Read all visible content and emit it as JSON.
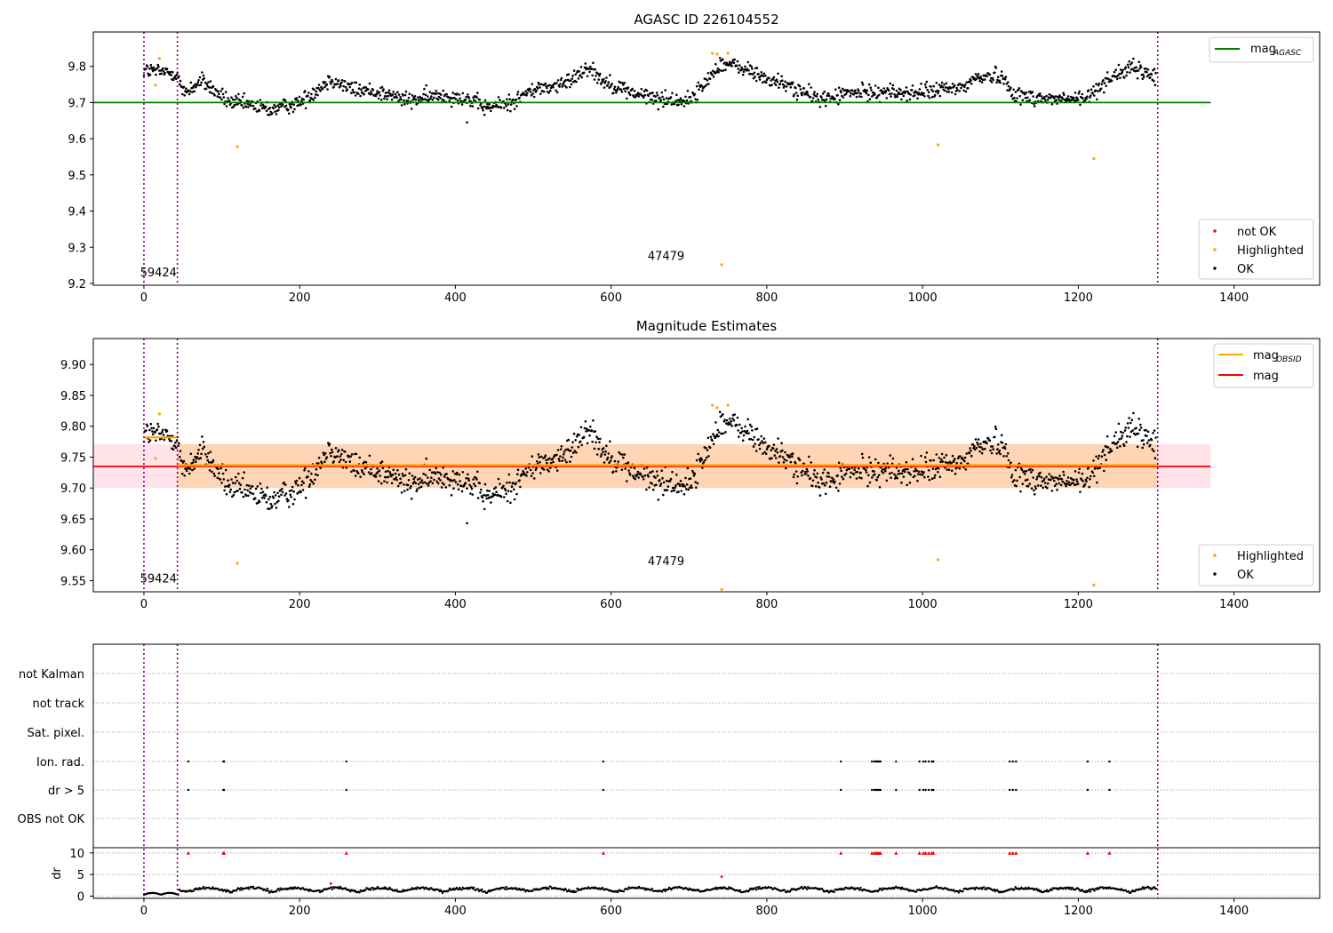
{
  "chart_data": [
    {
      "type": "scatter",
      "title": "AGASC ID 226104552",
      "xlim": [
        -65,
        1510
      ],
      "ylim": [
        9.195,
        9.895
      ],
      "xticks": [
        "0",
        "200",
        "400",
        "600",
        "800",
        "1000",
        "1200",
        "1400"
      ],
      "yticks": [
        "9.2",
        "9.3",
        "9.4",
        "9.5",
        "9.6",
        "9.7",
        "9.8"
      ],
      "vlines": [
        0,
        43,
        1302
      ],
      "mag_agasc": 9.7,
      "annotations": [
        {
          "text": "59424",
          "x": -5,
          "y": 9.22
        },
        {
          "text": "47479",
          "x": 647,
          "y": 9.265
        }
      ],
      "legend_line": {
        "label": "mag",
        "sub": "AGASC",
        "color": "#008000"
      },
      "legend_points": [
        {
          "label": "not OK",
          "color": "#ff0000"
        },
        {
          "label": "Highlighted",
          "color": "#ffa500"
        },
        {
          "label": "OK",
          "color": "#000000"
        }
      ],
      "highlighted": [
        [
          15,
          9.748
        ],
        [
          20,
          9.822
        ],
        [
          120,
          9.578
        ],
        [
          730,
          9.836
        ],
        [
          736,
          9.834
        ],
        [
          742,
          9.252
        ],
        [
          750,
          9.836
        ],
        [
          1020,
          9.583
        ],
        [
          1220,
          9.545
        ]
      ]
    },
    {
      "type": "scatter",
      "title": "Magnitude Estimates",
      "xlim": [
        -65,
        1510
      ],
      "ylim": [
        9.532,
        9.942
      ],
      "xticks": [
        "0",
        "200",
        "400",
        "600",
        "800",
        "1000",
        "1200",
        "1400"
      ],
      "yticks": [
        "9.55",
        "9.60",
        "9.65",
        "9.70",
        "9.75",
        "9.80",
        "9.85",
        "9.90"
      ],
      "vlines": [
        0,
        43,
        1302
      ],
      "mag": 9.735,
      "mag_band": [
        9.7,
        9.771
      ],
      "mag_obsid": [
        {
          "x0": 0,
          "x1": 43,
          "y": 9.782
        },
        {
          "x0": 43,
          "x1": 1302,
          "y": 9.737
        }
      ],
      "annotations": [
        {
          "text": "59424",
          "x": -5,
          "y": 9.547
        },
        {
          "text": "47479",
          "x": 647,
          "y": 9.575
        }
      ],
      "legend_lines": [
        {
          "label": "mag",
          "sub": "OBSID",
          "color": "#ffa500"
        },
        {
          "label": "mag",
          "sub": "",
          "color": "#ff0000"
        }
      ],
      "legend_points": [
        {
          "label": "Highlighted",
          "color": "#ffa500"
        },
        {
          "label": "OK",
          "color": "#000000"
        }
      ],
      "highlighted": [
        [
          15,
          9.748
        ],
        [
          20,
          9.82
        ],
        [
          120,
          9.578
        ],
        [
          730,
          9.834
        ],
        [
          736,
          9.83
        ],
        [
          742,
          9.536
        ],
        [
          750,
          9.834
        ],
        [
          1020,
          9.584
        ],
        [
          1220,
          9.543
        ]
      ]
    },
    {
      "type": "scatter",
      "title": "",
      "xlim": [
        -65,
        1510
      ],
      "xticks": [
        "0",
        "200",
        "400",
        "600",
        "800",
        "1000",
        "1200",
        "1400"
      ],
      "vlines": [
        0,
        43,
        1302
      ],
      "flag_labels": [
        "not Kalman",
        "not track",
        "Sat. pixel.",
        "Ion. rad.",
        "dr > 5",
        "OBS not OK"
      ],
      "flag_x": [
        57,
        102,
        103,
        260,
        590,
        895,
        935,
        938,
        940,
        942,
        944,
        946,
        966,
        996,
        1001,
        1004,
        1008,
        1012,
        1014,
        1112,
        1116,
        1120,
        1212,
        1240
      ],
      "dr_ylabel": "dr",
      "dr_yticks": [
        "0",
        "5",
        "10"
      ],
      "dr_ylim": [
        -0.5,
        11.2
      ],
      "dr_outliers": [
        [
          240,
          2.9
        ],
        [
          742,
          4.5
        ]
      ]
    }
  ]
}
